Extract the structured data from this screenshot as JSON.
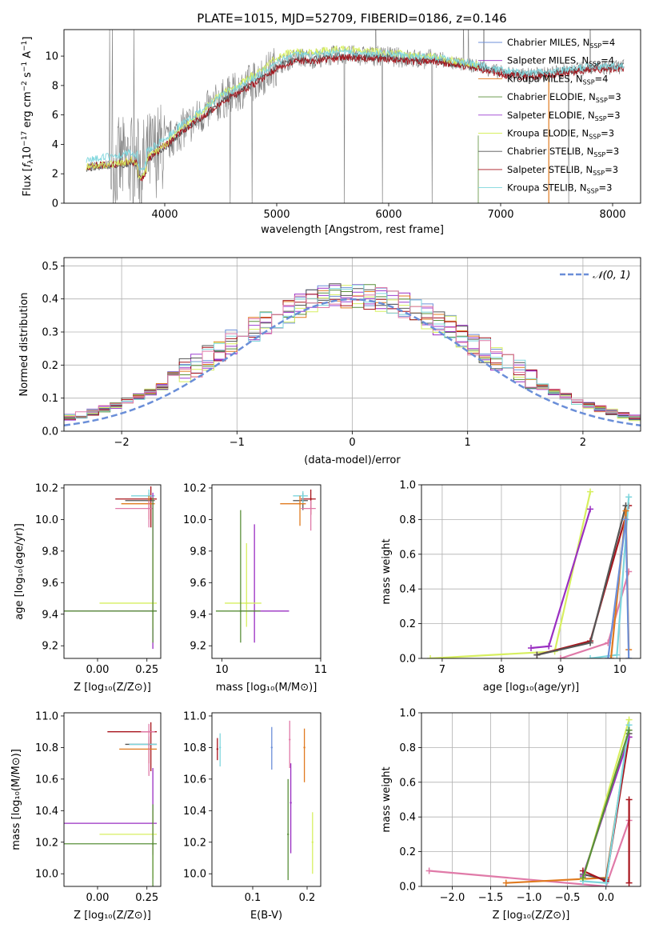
{
  "figure_title": "PLATE=1015, MJD=52709, FIBERID=0186, z=0.146",
  "colors": {
    "chabrier_miles": "#6c8fd8",
    "salpeter_miles": "#9a2fc2",
    "kroupa_miles": "#e07a1f",
    "chabrier_elodie": "#5a8f3a",
    "salpeter_elodie": "#9b3fd0",
    "kroupa_elodie": "#d7ef60",
    "chabrier_stelib": "#555555",
    "salpeter_stelib": "#a8141c",
    "kroupa_stelib": "#7ed6dd",
    "pink": "#e07aa8",
    "data": "#808080"
  },
  "chart_data": [
    {
      "id": "spectrum",
      "type": "line",
      "xlabel": "wavelength [Angstrom, rest frame]",
      "xlim": [
        3100,
        8250
      ],
      "ylim": [
        0,
        11.8
      ],
      "xticks": [
        4000,
        5000,
        6000,
        7000,
        8000
      ],
      "yticks": [
        0,
        2,
        4,
        6,
        8,
        10
      ],
      "legend_placement": "top-right",
      "legend": [
        {
          "text": "Chabrier MILES, N",
          "sub": "SSP",
          "tail": "=4",
          "color_key": "chabrier_miles"
        },
        {
          "text": "Salpeter MILES, N",
          "sub": "SSP",
          "tail": "=4",
          "color_key": "salpeter_miles"
        },
        {
          "text": "Kroupa MILES, N",
          "sub": "SSP",
          "tail": "=4",
          "color_key": "kroupa_miles"
        },
        {
          "text": "Chabrier ELODIE, N",
          "sub": "SSP",
          "tail": "=3",
          "color_key": "chabrier_elodie"
        },
        {
          "text": "Salpeter ELODIE, N",
          "sub": "SSP",
          "tail": "=3",
          "color_key": "salpeter_elodie"
        },
        {
          "text": "Kroupa ELODIE, N",
          "sub": "SSP",
          "tail": "=3",
          "color_key": "kroupa_elodie"
        },
        {
          "text": "Chabrier STELIB, N",
          "sub": "SSP",
          "tail": "=3",
          "color_key": "chabrier_stelib"
        },
        {
          "text": "Salpeter STELIB, N",
          "sub": "SSP",
          "tail": "=3",
          "color_key": "salpeter_stelib"
        },
        {
          "text": "Kroupa STELIB, N",
          "sub": "SSP",
          "tail": "=3",
          "color_key": "kroupa_stelib"
        }
      ],
      "model_trend": [
        [
          3300,
          2.5
        ],
        [
          3450,
          2.6
        ],
        [
          3600,
          2.7
        ],
        [
          3700,
          2.9
        ],
        [
          3800,
          2.6
        ],
        [
          3850,
          3.1
        ],
        [
          3950,
          3.7
        ],
        [
          4050,
          4.3
        ],
        [
          4150,
          5.0
        ],
        [
          4300,
          5.8
        ],
        [
          4400,
          6.4
        ],
        [
          4500,
          7.0
        ],
        [
          4650,
          7.6
        ],
        [
          4800,
          8.3
        ],
        [
          4900,
          8.8
        ],
        [
          5000,
          9.4
        ],
        [
          5100,
          9.7
        ],
        [
          5200,
          9.9
        ],
        [
          5300,
          9.8
        ],
        [
          5450,
          10.0
        ],
        [
          5600,
          10.1
        ],
        [
          5800,
          10.0
        ],
        [
          6000,
          10.0
        ],
        [
          6200,
          9.8
        ],
        [
          6400,
          9.8
        ],
        [
          6600,
          9.5
        ],
        [
          6800,
          9.3
        ],
        [
          7000,
          8.9
        ],
        [
          7200,
          8.7
        ],
        [
          7400,
          8.8
        ],
        [
          7600,
          9.0
        ],
        [
          7800,
          9.2
        ],
        [
          8000,
          9.2
        ],
        [
          8100,
          9.3
        ]
      ],
      "model_offsets": {
        "kroupa_stelib": [
          [
            3300,
            0.5
          ],
          [
            3700,
            0.6
          ],
          [
            4000,
            0.4
          ],
          [
            5000,
            0.2
          ],
          [
            8100,
            0.1
          ]
        ],
        "salpeter_stelib": [
          [
            3300,
            0.0
          ],
          [
            4000,
            -0.1
          ],
          [
            5000,
            -0.2
          ],
          [
            8100,
            -0.1
          ]
        ],
        "chabrier_stelib": [
          [
            3300,
            -0.1
          ],
          [
            4000,
            -0.2
          ],
          [
            5000,
            -0.1
          ],
          [
            8100,
            0.0
          ]
        ],
        "kroupa_elodie": [
          [
            3300,
            0.0
          ],
          [
            4000,
            0.0
          ],
          [
            4500,
            0.4
          ],
          [
            5000,
            0.5
          ],
          [
            5500,
            0.4
          ],
          [
            6800,
            0.1
          ]
        ]
      }
    },
    {
      "id": "residuals",
      "type": "line",
      "xlabel": "(data-model)/error",
      "ylabel": "Normed distribution",
      "xlim": [
        -2.5,
        2.5
      ],
      "ylim": [
        0,
        0.525
      ],
      "xticks": [
        -2,
        -1,
        0,
        1,
        2
      ],
      "yticks": [
        0.0,
        0.1,
        0.2,
        0.3,
        0.4,
        0.5
      ],
      "legend": "𝒩(0, 1)",
      "legend_placement": "top-right",
      "bin_width": 0.1,
      "bin_start": -2.5
    },
    {
      "id": "age_vs_z",
      "type": "scatter",
      "xlabel": "Z [log₁₀(Z/Z⊙)]",
      "ylabel": "age  [log₁₀(age/yr)]",
      "xlim": [
        -0.17,
        0.32
      ],
      "ylim": [
        9.12,
        10.22
      ],
      "xticks": [
        0.0,
        0.25
      ],
      "yticks": [
        9.2,
        9.4,
        9.6,
        9.8,
        10.0,
        10.2
      ],
      "points": [
        {
          "x": 0.27,
          "y": 10.13,
          "xerr": [
            0.18,
            0.03
          ],
          "yerr": [
            0.18,
            0.08
          ],
          "color_key": "salpeter_stelib"
        },
        {
          "x": 0.26,
          "y": 10.12,
          "xerr": [
            0.12,
            0.03
          ],
          "yerr": [
            0.05,
            0.05
          ],
          "color_key": "chabrier_stelib"
        },
        {
          "x": 0.26,
          "y": 10.15,
          "xerr": [
            0.09,
            0.03
          ],
          "yerr": [
            0.07,
            0.04
          ],
          "color_key": "kroupa_stelib"
        },
        {
          "x": 0.26,
          "y": 10.1,
          "xerr": [
            0.14,
            0.03
          ],
          "yerr": [
            0.1,
            0.05
          ],
          "color_key": "kroupa_miles"
        },
        {
          "x": 0.26,
          "y": 10.07,
          "xerr": [
            0.17,
            0.02
          ],
          "yerr": [
            0.12,
            0.05
          ],
          "color_key": "pink"
        },
        {
          "x": 0.28,
          "y": 9.42,
          "xerr": [
            0.45,
            0.02
          ],
          "yerr": [
            0.24,
            0.75
          ],
          "color_key": "salpeter_miles"
        },
        {
          "x": 0.28,
          "y": 9.47,
          "xerr": [
            0.27,
            0.02
          ],
          "yerr": [
            0.16,
            0.35
          ],
          "color_key": "kroupa_elodie"
        },
        {
          "x": 0.28,
          "y": 9.42,
          "xerr": [
            0.45,
            0.02
          ],
          "yerr": [
            0.2,
            0.72
          ],
          "color_key": "chabrier_elodie"
        }
      ]
    },
    {
      "id": "age_vs_mass",
      "type": "scatter",
      "xlabel": "mass [log₁₀(M/M⊙)]",
      "xlim": [
        9.9,
        11.0
      ],
      "ylim": [
        9.12,
        10.22
      ],
      "xticks": [
        10,
        11
      ],
      "yticks": [
        9.2,
        9.4,
        9.6,
        9.8,
        10.0,
        10.2
      ],
      "points": [
        {
          "x": 10.9,
          "y": 10.13,
          "xerr": [
            0.1,
            0.05
          ],
          "yerr": [
            0.1,
            0.06
          ],
          "color_key": "salpeter_stelib"
        },
        {
          "x": 10.82,
          "y": 10.12,
          "xerr": [
            0.1,
            0.05
          ],
          "yerr": [
            0.06,
            0.05
          ],
          "color_key": "chabrier_stelib"
        },
        {
          "x": 10.82,
          "y": 10.15,
          "xerr": [
            0.1,
            0.05
          ],
          "yerr": [
            0.05,
            0.03
          ],
          "color_key": "kroupa_stelib"
        },
        {
          "x": 10.79,
          "y": 10.1,
          "xerr": [
            0.2,
            0.06
          ],
          "yerr": [
            0.14,
            0.05
          ],
          "color_key": "kroupa_miles"
        },
        {
          "x": 10.9,
          "y": 10.07,
          "xerr": [
            0.1,
            0.05
          ],
          "yerr": [
            0.14,
            0.05
          ],
          "color_key": "pink"
        },
        {
          "x": 10.33,
          "y": 9.42,
          "xerr": [
            0.15,
            0.35
          ],
          "yerr": [
            0.2,
            0.55
          ],
          "color_key": "salpeter_miles"
        },
        {
          "x": 10.25,
          "y": 9.47,
          "xerr": [
            0.22,
            0.15
          ],
          "yerr": [
            0.15,
            0.38
          ],
          "color_key": "kroupa_elodie"
        },
        {
          "x": 10.19,
          "y": 9.42,
          "xerr": [
            0.25,
            0.2
          ],
          "yerr": [
            0.2,
            0.64
          ],
          "color_key": "chabrier_elodie"
        }
      ]
    },
    {
      "id": "massweight_vs_age",
      "type": "line",
      "xlabel": "age  [log₁₀(age/yr)]",
      "ylabel": "mass weight",
      "xlim": [
        6.65,
        10.35
      ],
      "ylim": [
        0,
        1.0
      ],
      "xticks": [
        7,
        8,
        9,
        10
      ],
      "yticks": [
        0.0,
        0.2,
        0.4,
        0.6,
        0.8,
        1.0
      ],
      "series": [
        {
          "color_key": "kroupa_elodie",
          "x": [
            6.8,
            8.9,
            9.5
          ],
          "y": [
            0.0,
            0.04,
            0.96
          ]
        },
        {
          "color_key": "salpeter_miles",
          "x": [
            8.5,
            8.8,
            9.5
          ],
          "y": [
            0.06,
            0.07,
            0.86
          ]
        },
        {
          "color_key": "salpeter_stelib",
          "x": [
            8.6,
            9.5,
            10.15
          ],
          "y": [
            0.02,
            0.1,
            0.88
          ]
        },
        {
          "color_key": "chabrier_stelib",
          "x": [
            8.6,
            9.5,
            10.1
          ],
          "y": [
            0.02,
            0.09,
            0.88
          ]
        },
        {
          "color_key": "pink",
          "x": [
            9.0,
            9.8,
            10.15
          ],
          "y": [
            0.0,
            0.09,
            0.5
          ]
        },
        {
          "color_key": "kroupa_stelib",
          "x": [
            9.5,
            9.95,
            10.15
          ],
          "y": [
            0.0,
            0.02,
            0.93
          ]
        },
        {
          "color_key": "kroupa_miles",
          "x": [
            9.85,
            10.1,
            10.15
          ],
          "y": [
            0.0,
            0.85,
            0.05
          ]
        },
        {
          "color_key": "chabrier_miles",
          "x": [
            9.8,
            10.1,
            10.15
          ],
          "y": [
            0.0,
            0.8,
            0.0
          ]
        }
      ]
    },
    {
      "id": "mass_vs_z",
      "type": "scatter",
      "xlabel": "Z [log₁₀(Z/Z⊙)]",
      "ylabel": "mass [log₁₀(M/M⊙)]",
      "xlim": [
        -0.17,
        0.32
      ],
      "ylim": [
        9.92,
        11.02
      ],
      "xticks": [
        0.0,
        0.25
      ],
      "yticks": [
        10.0,
        10.2,
        10.4,
        10.6,
        10.8,
        11.0
      ],
      "points": [
        {
          "x": 0.27,
          "y": 10.9,
          "xerr": [
            0.22,
            0.03
          ],
          "yerr": [
            0.25,
            0.06
          ],
          "color_key": "salpeter_stelib"
        },
        {
          "x": 0.26,
          "y": 10.82,
          "xerr": [
            0.12,
            0.04
          ],
          "yerr": [
            0.12,
            0.05
          ],
          "color_key": "chabrier_stelib"
        },
        {
          "x": 0.26,
          "y": 10.82,
          "xerr": [
            0.1,
            0.04
          ],
          "yerr": [
            0.05,
            0.05
          ],
          "color_key": "kroupa_stelib"
        },
        {
          "x": 0.26,
          "y": 10.79,
          "xerr": [
            0.15,
            0.04
          ],
          "yerr": [
            0.09,
            0.06
          ],
          "color_key": "kroupa_miles"
        },
        {
          "x": 0.26,
          "y": 10.9,
          "xerr": [
            0.04,
            0.03
          ],
          "yerr": [
            0.28,
            0.05
          ],
          "color_key": "pink"
        },
        {
          "x": 0.28,
          "y": 10.32,
          "xerr": [
            0.45,
            0.02
          ],
          "yerr": [
            0.2,
            0.35
          ],
          "color_key": "salpeter_miles"
        },
        {
          "x": 0.28,
          "y": 10.25,
          "xerr": [
            0.27,
            0.02
          ],
          "yerr": [
            0.28,
            0.15
          ],
          "color_key": "kroupa_elodie"
        },
        {
          "x": 0.28,
          "y": 10.19,
          "xerr": [
            0.45,
            0.02
          ],
          "yerr": [
            0.27,
            0.25
          ],
          "color_key": "chabrier_elodie"
        }
      ]
    },
    {
      "id": "mass_vs_ebv",
      "type": "scatter",
      "xlabel": "E(B-V)",
      "xlim": [
        0.025,
        0.225
      ],
      "ylim": [
        9.92,
        11.02
      ],
      "xticks": [
        0.1,
        0.2
      ],
      "yticks": [
        10.0,
        10.2,
        10.4,
        10.6,
        10.8,
        11.0
      ],
      "points": [
        {
          "x": 0.035,
          "y": 10.79,
          "yerr": [
            0.07,
            0.07
          ],
          "color_key": "salpeter_stelib"
        },
        {
          "x": 0.04,
          "y": 10.8,
          "yerr": [
            0.12,
            0.09
          ],
          "color_key": "kroupa_stelib"
        },
        {
          "x": 0.135,
          "y": 10.8,
          "yerr": [
            0.14,
            0.13
          ],
          "color_key": "chabrier_miles"
        },
        {
          "x": 0.168,
          "y": 10.85,
          "yerr": [
            0.18,
            0.12
          ],
          "color_key": "pink"
        },
        {
          "x": 0.17,
          "y": 10.45,
          "yerr": [
            0.32,
            0.25
          ],
          "color_key": "salpeter_miles"
        },
        {
          "x": 0.165,
          "y": 10.25,
          "yerr": [
            0.29,
            0.35
          ],
          "color_key": "chabrier_elodie"
        },
        {
          "x": 0.195,
          "y": 10.8,
          "yerr": [
            0.22,
            0.12
          ],
          "color_key": "kroupa_miles"
        },
        {
          "x": 0.21,
          "y": 10.2,
          "yerr": [
            0.2,
            0.19
          ],
          "color_key": "kroupa_elodie"
        }
      ]
    },
    {
      "id": "massweight_vs_z",
      "type": "line",
      "xlabel": "Z [log₁₀(Z/Z⊙)]",
      "ylabel": "mass weight",
      "xlim": [
        -2.4,
        0.45
      ],
      "ylim": [
        0,
        1.0
      ],
      "xticks": [
        -2.0,
        -1.5,
        -1.0,
        -0.5,
        0.0
      ],
      "yticks": [
        0.0,
        0.2,
        0.4,
        0.6,
        0.8,
        1.0
      ],
      "series": [
        {
          "color_key": "pink",
          "x": [
            -2.3,
            0.0,
            0.3
          ],
          "y": [
            0.09,
            0.0,
            0.38
          ]
        },
        {
          "color_key": "kroupa_miles",
          "x": [
            -1.3,
            0.0,
            0.3
          ],
          "y": [
            0.02,
            0.05,
            0.9
          ]
        },
        {
          "color_key": "chabrier_stelib",
          "x": [
            -0.3,
            0.0,
            0.3
          ],
          "y": [
            0.07,
            0.04,
            0.88
          ]
        },
        {
          "color_key": "salpeter_stelib",
          "x": [
            -0.3,
            0.0,
            0.3
          ],
          "y": [
            0.09,
            0.03,
            0.86
          ]
        },
        {
          "color_key": "salpeter_miles",
          "x": [
            -0.3,
            0.3
          ],
          "y": [
            0.06,
            0.86
          ]
        },
        {
          "color_key": "kroupa_elodie",
          "x": [
            -0.3,
            0.3
          ],
          "y": [
            0.04,
            0.96
          ]
        },
        {
          "color_key": "kroupa_stelib",
          "x": [
            -0.3,
            0.0,
            0.3
          ],
          "y": [
            0.03,
            0.02,
            0.93
          ]
        },
        {
          "color_key": "chabrier_elodie",
          "x": [
            -0.3,
            0.3
          ],
          "y": [
            0.05,
            0.9
          ]
        },
        {
          "color_key": "salpeter_stelib",
          "x": [
            0.3,
            0.3
          ],
          "y": [
            0.02,
            0.5
          ]
        }
      ]
    }
  ]
}
